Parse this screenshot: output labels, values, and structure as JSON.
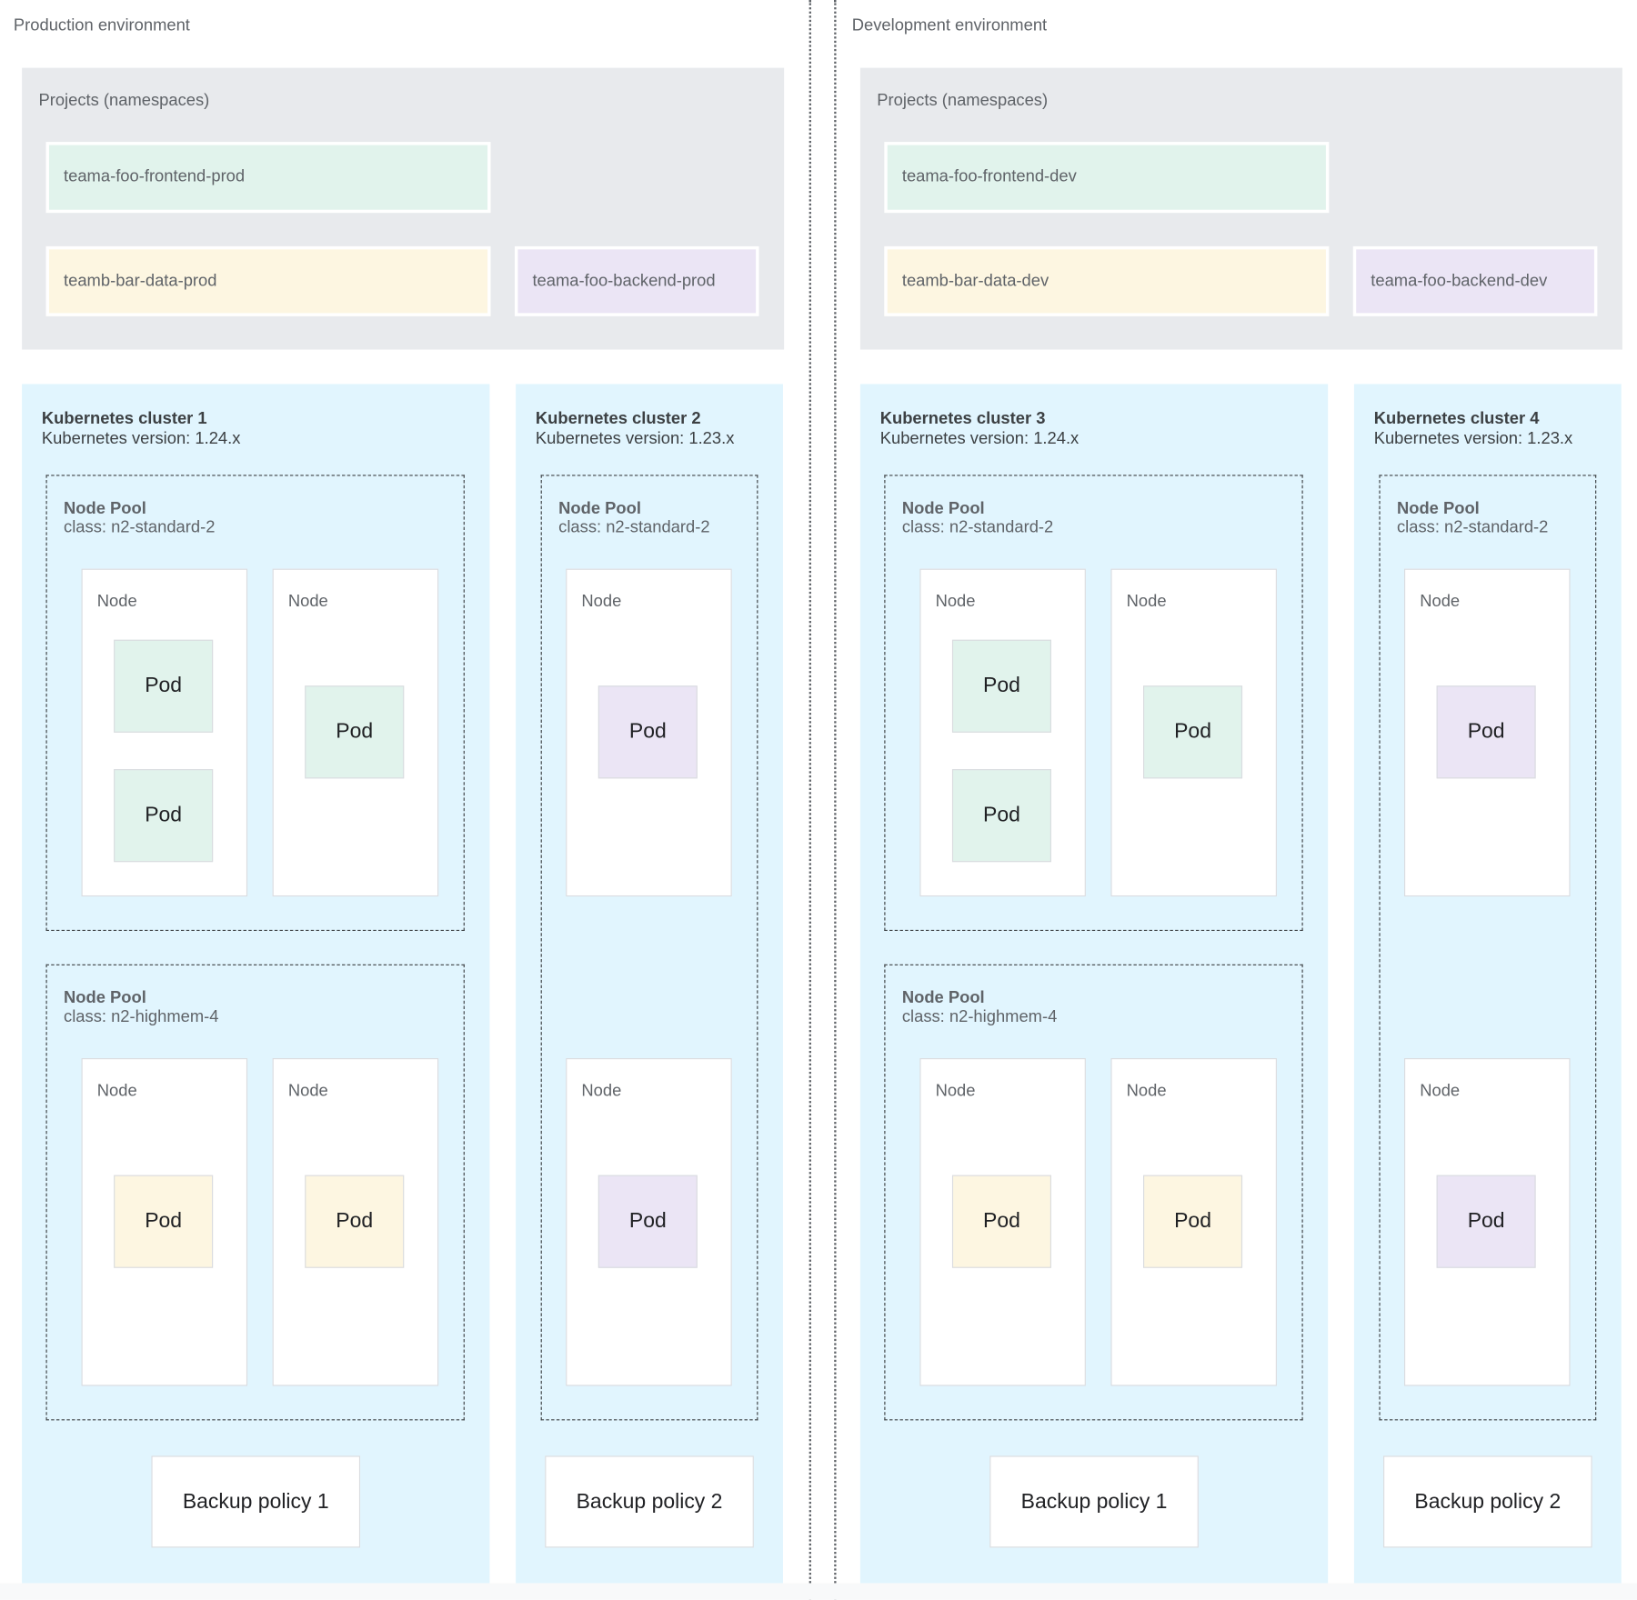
{
  "environments": [
    {
      "title": "Production environment",
      "projects": {
        "title": "Projects (namespaces)",
        "namespaces": [
          {
            "label": "teama-foo-frontend-prod",
            "color": "#e1f3ec"
          },
          {
            "label": "teamb-bar-data-prod",
            "color": "#fdf6e1"
          },
          {
            "label": "teama-foo-backend-prod",
            "color": "#ebe5f5"
          }
        ]
      },
      "clusters": [
        {
          "name": "Kubernetes cluster 1",
          "version": "Kubernetes version: 1.24.x",
          "node_pools": [
            {
              "name": "Node Pool",
              "class": "class: n2-standard-2",
              "nodes": [
                {
                  "label": "Node",
                  "pods": [
                    {
                      "label": "Pod",
                      "color": "#e1f3ec"
                    },
                    {
                      "label": "Pod",
                      "color": "#e1f3ec"
                    }
                  ]
                },
                {
                  "label": "Node",
                  "pods": [
                    {
                      "label": "Pod",
                      "color": "#e1f3ec"
                    }
                  ]
                }
              ]
            },
            {
              "name": "Node Pool",
              "class": "class: n2-highmem-4",
              "nodes": [
                {
                  "label": "Node",
                  "pods": [
                    {
                      "label": "Pod",
                      "color": "#fdf6e1"
                    }
                  ]
                },
                {
                  "label": "Node",
                  "pods": [
                    {
                      "label": "Pod",
                      "color": "#fdf6e1"
                    }
                  ]
                }
              ]
            }
          ],
          "backup": "Backup policy 1"
        },
        {
          "name": "Kubernetes cluster 2",
          "version": "Kubernetes version: 1.23.x",
          "node_pools": [
            {
              "name": "Node Pool",
              "class": "class: n2-standard-2",
              "nodes": [
                {
                  "label": "Node",
                  "pods": [
                    {
                      "label": "Pod",
                      "color": "#ebe5f5"
                    }
                  ]
                },
                {
                  "label": "Node",
                  "pods": [
                    {
                      "label": "Pod",
                      "color": "#ebe5f5"
                    }
                  ]
                }
              ]
            }
          ],
          "backup": "Backup policy 2"
        }
      ]
    },
    {
      "title": "Development environment",
      "projects": {
        "title": "Projects (namespaces)",
        "namespaces": [
          {
            "label": "teama-foo-frontend-dev",
            "color": "#e1f3ec"
          },
          {
            "label": "teamb-bar-data-dev",
            "color": "#fdf6e1"
          },
          {
            "label": "teama-foo-backend-dev",
            "color": "#ebe5f5"
          }
        ]
      },
      "clusters": [
        {
          "name": "Kubernetes cluster 3",
          "version": "Kubernetes version: 1.24.x",
          "node_pools": [
            {
              "name": "Node Pool",
              "class": "class: n2-standard-2",
              "nodes": [
                {
                  "label": "Node",
                  "pods": [
                    {
                      "label": "Pod",
                      "color": "#e1f3ec"
                    },
                    {
                      "label": "Pod",
                      "color": "#e1f3ec"
                    }
                  ]
                },
                {
                  "label": "Node",
                  "pods": [
                    {
                      "label": "Pod",
                      "color": "#e1f3ec"
                    }
                  ]
                }
              ]
            },
            {
              "name": "Node Pool",
              "class": "class: n2-highmem-4",
              "nodes": [
                {
                  "label": "Node",
                  "pods": [
                    {
                      "label": "Pod",
                      "color": "#fdf6e1"
                    }
                  ]
                },
                {
                  "label": "Node",
                  "pods": [
                    {
                      "label": "Pod",
                      "color": "#fdf6e1"
                    }
                  ]
                }
              ]
            }
          ],
          "backup": "Backup policy 1"
        },
        {
          "name": "Kubernetes cluster 4",
          "version": "Kubernetes version: 1.23.x",
          "node_pools": [
            {
              "name": "Node Pool",
              "class": "class: n2-standard-2",
              "nodes": [
                {
                  "label": "Node",
                  "pods": [
                    {
                      "label": "Pod",
                      "color": "#ebe5f5"
                    }
                  ]
                },
                {
                  "label": "Node",
                  "pods": [
                    {
                      "label": "Pod",
                      "color": "#ebe5f5"
                    }
                  ]
                }
              ]
            }
          ],
          "backup": "Backup policy 2"
        }
      ]
    }
  ]
}
